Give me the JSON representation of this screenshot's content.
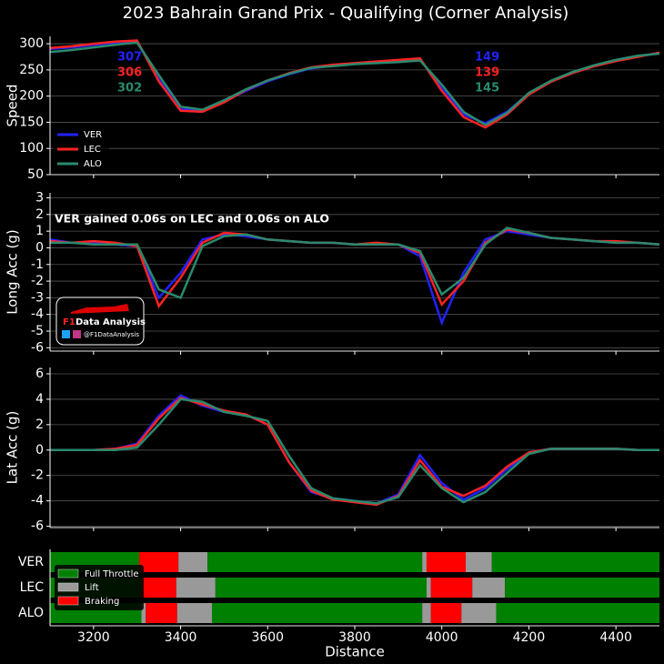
{
  "title": "2023 Bahrain Grand Prix - Qualifying (Corner Analysis)",
  "x_label": "Distance",
  "xlim": [
    3100,
    4500
  ],
  "xticks": [
    3200,
    3400,
    3600,
    3800,
    4000,
    4200,
    4400
  ],
  "series_info": [
    {
      "name": "VER",
      "color": "#2222ff"
    },
    {
      "name": "LEC",
      "color": "#ff2222"
    },
    {
      "name": "ALO",
      "color": "#2a8a6e"
    }
  ],
  "logo": {
    "title": "Data Analysis",
    "brand": "F1",
    "handle": "@F1DataAnalysis"
  },
  "chart_data": [
    {
      "type": "line",
      "y_label": "Speed",
      "ylim": [
        50,
        314
      ],
      "yticks": [
        50,
        100,
        150,
        200,
        250,
        300
      ],
      "grid": true,
      "legend": "lower left",
      "x": [
        3100,
        3150,
        3200,
        3250,
        3300,
        3350,
        3400,
        3450,
        3500,
        3550,
        3600,
        3650,
        3700,
        3750,
        3800,
        3850,
        3900,
        3950,
        4000,
        4050,
        4100,
        4150,
        4200,
        4250,
        4300,
        4350,
        4400,
        4450,
        4500
      ],
      "series": [
        {
          "values": [
            290,
            293,
            298,
            302,
            305,
            232,
            175,
            172,
            190,
            210,
            228,
            242,
            253,
            258,
            262,
            264,
            267,
            270,
            215,
            165,
            148,
            170,
            205,
            228,
            245,
            258,
            268,
            276,
            282
          ]
        },
        {
          "values": [
            292,
            295,
            300,
            304,
            306,
            228,
            172,
            170,
            188,
            212,
            230,
            244,
            255,
            260,
            263,
            266,
            269,
            272,
            210,
            160,
            140,
            165,
            203,
            227,
            244,
            257,
            267,
            275,
            283
          ]
        },
        {
          "values": [
            284,
            288,
            293,
            298,
            302,
            240,
            180,
            174,
            192,
            213,
            230,
            243,
            254,
            257,
            261,
            263,
            265,
            268,
            222,
            170,
            145,
            168,
            206,
            229,
            246,
            259,
            269,
            277,
            281
          ]
        }
      ],
      "annotations": [
        [
          307,
          306,
          302
        ],
        [
          149,
          139,
          145
        ]
      ]
    },
    {
      "type": "line",
      "y_label": "Long Acc (g)",
      "ylim": [
        -6.2,
        3.3
      ],
      "yticks": [
        -6,
        -5,
        -4,
        -3,
        -2,
        -1,
        0,
        1,
        2,
        3
      ],
      "grid": true,
      "annotation": "VER gained 0.06s on LEC and 0.06s on ALO",
      "x": [
        3100,
        3150,
        3200,
        3250,
        3300,
        3350,
        3400,
        3450,
        3500,
        3550,
        3600,
        3650,
        3700,
        3750,
        3800,
        3850,
        3900,
        3950,
        4000,
        4050,
        4100,
        4150,
        4200,
        4250,
        4300,
        4350,
        4400,
        4450,
        4500
      ],
      "series": [
        {
          "values": [
            0.5,
            0.3,
            0.3,
            0.2,
            0.1,
            -3.0,
            -1.5,
            0.5,
            0.8,
            0.7,
            0.5,
            0.4,
            0.3,
            0.3,
            0.2,
            0.2,
            0.2,
            -0.5,
            -4.5,
            -1.5,
            0.5,
            1.0,
            0.8,
            0.6,
            0.5,
            0.4,
            0.3,
            0.3,
            0.2
          ]
        },
        {
          "values": [
            0.4,
            0.3,
            0.4,
            0.3,
            0.1,
            -3.5,
            -1.8,
            0.3,
            0.9,
            0.8,
            0.5,
            0.4,
            0.3,
            0.3,
            0.2,
            0.3,
            0.2,
            -0.3,
            -3.4,
            -2.0,
            0.3,
            1.1,
            0.9,
            0.6,
            0.5,
            0.4,
            0.4,
            0.3,
            0.2
          ]
        },
        {
          "values": [
            0.3,
            0.3,
            0.2,
            0.2,
            0.2,
            -2.5,
            -3.0,
            0.1,
            0.7,
            0.8,
            0.5,
            0.4,
            0.3,
            0.3,
            0.2,
            0.2,
            0.2,
            -0.2,
            -2.8,
            -1.8,
            0.2,
            1.2,
            0.9,
            0.6,
            0.5,
            0.4,
            0.3,
            0.3,
            0.2
          ]
        }
      ]
    },
    {
      "type": "line",
      "y_label": "Lat Acc (g)",
      "ylim": [
        -6.1,
        6.5
      ],
      "yticks": [
        -6,
        -4,
        -2,
        0,
        2,
        4,
        6
      ],
      "grid": true,
      "x": [
        3100,
        3150,
        3200,
        3250,
        3300,
        3350,
        3400,
        3450,
        3500,
        3550,
        3600,
        3650,
        3700,
        3750,
        3800,
        3850,
        3900,
        3950,
        4000,
        4050,
        4100,
        4150,
        4200,
        4250,
        4300,
        4350,
        4400,
        4450,
        4500
      ],
      "series": [
        {
          "values": [
            0,
            0,
            0,
            0.1,
            0.5,
            2.7,
            4.3,
            3.5,
            3.0,
            2.8,
            2.0,
            -1.0,
            -3.3,
            -3.8,
            -4.0,
            -4.2,
            -3.5,
            -0.4,
            -2.6,
            -3.9,
            -3.0,
            -1.5,
            -0.2,
            0.1,
            0.1,
            0.1,
            0.1,
            0,
            0
          ]
        },
        {
          "values": [
            0,
            0,
            0,
            0.1,
            0.4,
            2.5,
            4.1,
            3.6,
            3.1,
            2.8,
            2.0,
            -1.0,
            -3.2,
            -3.9,
            -4.1,
            -4.3,
            -3.6,
            -0.8,
            -2.9,
            -3.6,
            -2.8,
            -1.3,
            -0.2,
            0.1,
            0.1,
            0.1,
            0.1,
            0,
            0
          ]
        },
        {
          "values": [
            0,
            0,
            0,
            0,
            0.2,
            2.0,
            4.0,
            3.8,
            3.0,
            2.7,
            2.3,
            -0.5,
            -3.0,
            -3.8,
            -4.0,
            -4.2,
            -3.7,
            -1.2,
            -3.0,
            -4.1,
            -3.3,
            -1.8,
            -0.3,
            0.1,
            0.1,
            0.1,
            0.1,
            0,
            0
          ]
        }
      ]
    },
    {
      "type": "timeline",
      "categories": [
        "VER",
        "LEC",
        "ALO"
      ],
      "states": [
        {
          "name": "Full Throttle",
          "color": "#008000"
        },
        {
          "name": "Lift",
          "color": "#999999"
        },
        {
          "name": "Braking",
          "color": "#ff0000"
        }
      ],
      "segments": [
        [
          {
            "start": 3100,
            "end": 3305,
            "state": "Full Throttle"
          },
          {
            "start": 3305,
            "end": 3395,
            "state": "Braking"
          },
          {
            "start": 3395,
            "end": 3462,
            "state": "Lift"
          },
          {
            "start": 3462,
            "end": 3955,
            "state": "Full Throttle"
          },
          {
            "start": 3955,
            "end": 3965,
            "state": "Lift"
          },
          {
            "start": 3965,
            "end": 4055,
            "state": "Braking"
          },
          {
            "start": 4055,
            "end": 4115,
            "state": "Lift"
          },
          {
            "start": 4115,
            "end": 4500,
            "state": "Full Throttle"
          }
        ],
        [
          {
            "start": 3100,
            "end": 3310,
            "state": "Full Throttle"
          },
          {
            "start": 3310,
            "end": 3390,
            "state": "Braking"
          },
          {
            "start": 3390,
            "end": 3480,
            "state": "Lift"
          },
          {
            "start": 3480,
            "end": 3965,
            "state": "Full Throttle"
          },
          {
            "start": 3965,
            "end": 3975,
            "state": "Lift"
          },
          {
            "start": 3975,
            "end": 4070,
            "state": "Braking"
          },
          {
            "start": 4070,
            "end": 4145,
            "state": "Lift"
          },
          {
            "start": 4145,
            "end": 4500,
            "state": "Full Throttle"
          }
        ],
        [
          {
            "start": 3100,
            "end": 3310,
            "state": "Full Throttle"
          },
          {
            "start": 3310,
            "end": 3320,
            "state": "Lift"
          },
          {
            "start": 3320,
            "end": 3392,
            "state": "Braking"
          },
          {
            "start": 3392,
            "end": 3472,
            "state": "Lift"
          },
          {
            "start": 3472,
            "end": 3955,
            "state": "Full Throttle"
          },
          {
            "start": 3955,
            "end": 3975,
            "state": "Lift"
          },
          {
            "start": 3975,
            "end": 4045,
            "state": "Braking"
          },
          {
            "start": 4045,
            "end": 4125,
            "state": "Lift"
          },
          {
            "start": 4125,
            "end": 4500,
            "state": "Full Throttle"
          }
        ]
      ]
    }
  ]
}
